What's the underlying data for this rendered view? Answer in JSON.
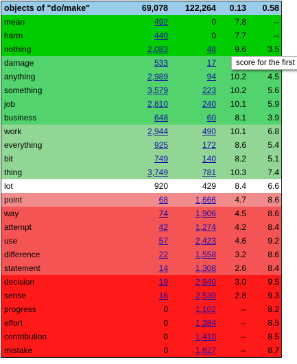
{
  "header": {
    "label": "objects of \"do/make\"",
    "total_do": "69,078",
    "total_make": "122,264",
    "score_do": "0.13",
    "score_make": "0.58"
  },
  "band_colors": {
    "green_strong": "#00cc00",
    "green_medium": "#52d36d",
    "green_light": "#91d694",
    "neutral": "#ffffff",
    "red_light": "#f28c8c",
    "red_medium": "#f55454",
    "red_strong": "#ff1a1a"
  },
  "rows": [
    {
      "word": "mean",
      "do": "492",
      "make": "0",
      "s1": "7.8",
      "s2": "--",
      "band": "green_strong",
      "do_link": true,
      "make_link": false
    },
    {
      "word": "harm",
      "do": "440",
      "make": "0",
      "s1": "7.7",
      "s2": "--",
      "band": "green_strong",
      "do_link": true,
      "make_link": false
    },
    {
      "word": "nothing",
      "do": "2,083",
      "make": "48",
      "s1": "9.6",
      "s2": "3.5",
      "band": "green_strong",
      "do_link": true,
      "make_link": true
    },
    {
      "word": "damage",
      "do": "533",
      "make": "17",
      "s1": "",
      "s2": "",
      "band": "green_medium",
      "do_link": true,
      "make_link": true
    },
    {
      "word": "anything",
      "do": "2,989",
      "make": "94",
      "s1": "10.2",
      "s2": "4.5",
      "band": "green_medium",
      "do_link": true,
      "make_link": true
    },
    {
      "word": "something",
      "do": "3,579",
      "make": "223",
      "s1": "10.2",
      "s2": "5.6",
      "band": "green_medium",
      "do_link": true,
      "make_link": true
    },
    {
      "word": "job",
      "do": "2,810",
      "make": "240",
      "s1": "10.1",
      "s2": "5.9",
      "band": "green_medium",
      "do_link": true,
      "make_link": true
    },
    {
      "word": "business",
      "do": "648",
      "make": "60",
      "s1": "8.1",
      "s2": "3.9",
      "band": "green_medium",
      "do_link": true,
      "make_link": true
    },
    {
      "word": "work",
      "do": "2,944",
      "make": "490",
      "s1": "10.1",
      "s2": "6.8",
      "band": "green_light",
      "do_link": true,
      "make_link": true
    },
    {
      "word": "everything",
      "do": "925",
      "make": "172",
      "s1": "8.6",
      "s2": "5.4",
      "band": "green_light",
      "do_link": true,
      "make_link": true
    },
    {
      "word": "bit",
      "do": "749",
      "make": "140",
      "s1": "8.2",
      "s2": "5.1",
      "band": "green_light",
      "do_link": true,
      "make_link": true
    },
    {
      "word": "thing",
      "do": "3,749",
      "make": "781",
      "s1": "10.3",
      "s2": "7.4",
      "band": "green_light",
      "do_link": true,
      "make_link": true
    },
    {
      "word": "lot",
      "do": "920",
      "make": "429",
      "s1": "8.4",
      "s2": "6.6",
      "band": "neutral",
      "do_link": false,
      "make_link": false
    },
    {
      "word": "point",
      "do": "68",
      "make": "1,666",
      "s1": "4.7",
      "s2": "8.6",
      "band": "red_light",
      "do_link": true,
      "make_link": true
    },
    {
      "word": "way",
      "do": "74",
      "make": "1,906",
      "s1": "4.5",
      "s2": "8.6",
      "band": "red_medium",
      "do_link": true,
      "make_link": true
    },
    {
      "word": "attempt",
      "do": "42",
      "make": "1,274",
      "s1": "4.2",
      "s2": "8.4",
      "band": "red_medium",
      "do_link": true,
      "make_link": true
    },
    {
      "word": "use",
      "do": "57",
      "make": "2,423",
      "s1": "4.6",
      "s2": "9.2",
      "band": "red_medium",
      "do_link": true,
      "make_link": true
    },
    {
      "word": "difference",
      "do": "22",
      "make": "1,558",
      "s1": "3.2",
      "s2": "8.6",
      "band": "red_medium",
      "do_link": true,
      "make_link": true
    },
    {
      "word": "statement",
      "do": "14",
      "make": "1,308",
      "s1": "2.6",
      "s2": "8.4",
      "band": "red_medium",
      "do_link": true,
      "make_link": true
    },
    {
      "word": "decision",
      "do": "19",
      "make": "2,940",
      "s1": "3.0",
      "s2": "9.5",
      "band": "red_strong",
      "do_link": true,
      "make_link": true
    },
    {
      "word": "sense",
      "do": "16",
      "make": "2,530",
      "s1": "2.8",
      "s2": "9.3",
      "band": "red_strong",
      "do_link": true,
      "make_link": true
    },
    {
      "word": "progress",
      "do": "0",
      "make": "1,102",
      "s1": "--",
      "s2": "8.2",
      "band": "red_strong",
      "do_link": false,
      "make_link": true
    },
    {
      "word": "effort",
      "do": "0",
      "make": "1,384",
      "s1": "--",
      "s2": "8.5",
      "band": "red_strong",
      "do_link": false,
      "make_link": true
    },
    {
      "word": "contribution",
      "do": "0",
      "make": "1,410",
      "s1": "--",
      "s2": "8.5",
      "band": "red_strong",
      "do_link": false,
      "make_link": true
    },
    {
      "word": "mistake",
      "do": "0",
      "make": "1,627",
      "s1": "--",
      "s2": "8.7",
      "band": "red_strong",
      "do_link": false,
      "make_link": true
    }
  ],
  "tooltip": {
    "text": "score for the first"
  }
}
